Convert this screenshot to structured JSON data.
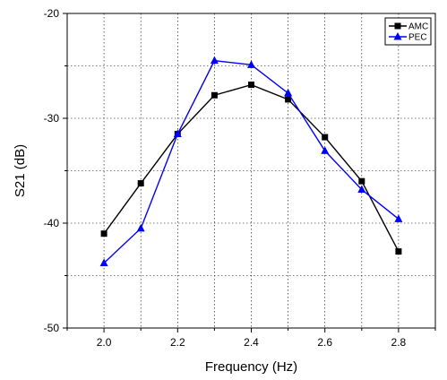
{
  "chart_data": {
    "type": "line",
    "xlabel": "Frequency (Hz)",
    "ylabel": "S21 (dB)",
    "xlim": [
      1.9,
      2.9
    ],
    "ylim": [
      -50,
      -20
    ],
    "x_ticks": [
      "2.0",
      "2.2",
      "2.4",
      "2.6",
      "2.8"
    ],
    "y_ticks": [
      "-20",
      "-30",
      "-40",
      "-50"
    ],
    "grid": "dotted",
    "legend_position": "top-right",
    "series": [
      {
        "name": "AMC",
        "color": "#000000",
        "marker": "square",
        "x": [
          2.0,
          2.1,
          2.2,
          2.3,
          2.4,
          2.5,
          2.6,
          2.7,
          2.8
        ],
        "y": [
          -41.0,
          -36.2,
          -31.5,
          -27.8,
          -26.8,
          -28.2,
          -31.8,
          -36.0,
          -42.7
        ]
      },
      {
        "name": "PEC",
        "color": "#0000ff",
        "marker": "triangle",
        "x": [
          2.0,
          2.1,
          2.2,
          2.3,
          2.4,
          2.5,
          2.6,
          2.7,
          2.8
        ],
        "y": [
          -43.8,
          -40.5,
          -31.5,
          -24.5,
          -24.9,
          -27.6,
          -33.1,
          -36.8,
          -39.6
        ]
      }
    ]
  }
}
